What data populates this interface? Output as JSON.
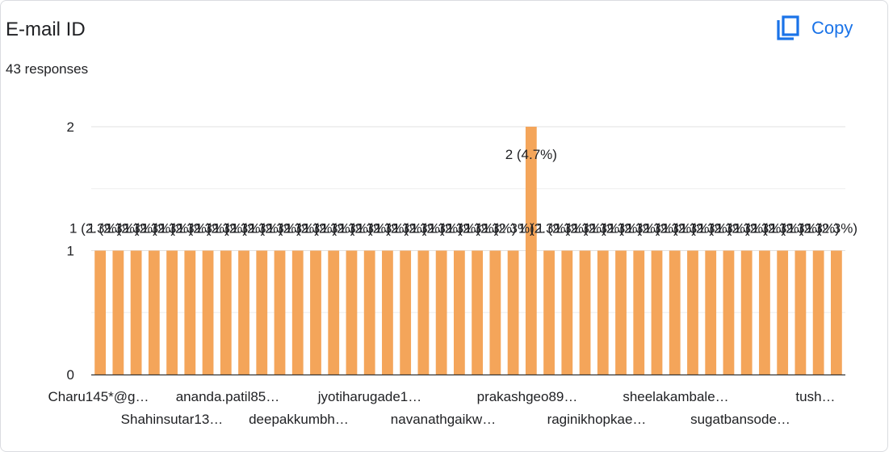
{
  "header": {
    "title": "E-mail ID",
    "responses_text": "43 responses",
    "copy_label": "Copy",
    "copy_icon": "copy-icon",
    "accent_color": "#1a73e8"
  },
  "chart_data": {
    "type": "bar",
    "title": "",
    "xlabel": "",
    "ylabel": "",
    "ylim": [
      0,
      2
    ],
    "yticks": [
      0,
      1,
      2
    ],
    "grid": true,
    "bar_color": "#f4a55a",
    "category_count": 42,
    "peak_index": 24,
    "x_tick_labels": [
      "Charu145*@g…",
      "Shahinsutar13…",
      "ananda.patil85…",
      "deepakkumbh…",
      "jyotiharugade1…",
      "navanathgaikw…",
      "prakashgeo89…",
      "raginikhopkae…",
      "sheelakambale…",
      "sugatbansode…",
      "tush…"
    ],
    "peak_label": "2 (4.7%)",
    "bar_label": "1 (2.3%)"
  }
}
